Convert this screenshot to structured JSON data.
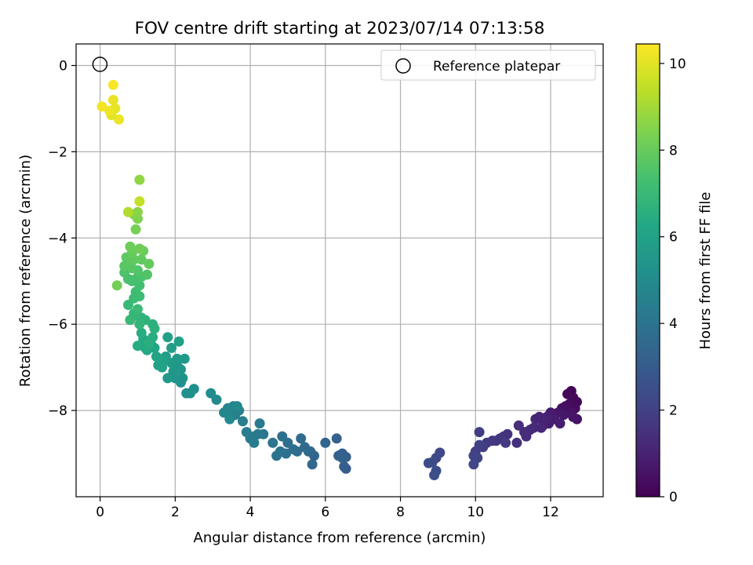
{
  "chart_data": {
    "type": "scatter",
    "title": "FOV centre drift starting at 2023/07/14 07:13:58",
    "xlabel": "Angular distance from reference (arcmin)",
    "ylabel": "Rotation from reference (arcmin)",
    "xlim": [
      -0.64,
      13.4
    ],
    "ylim": [
      -10.0,
      0.5
    ],
    "x_ticks": [
      0,
      2,
      4,
      6,
      8,
      10,
      12
    ],
    "x_tick_labels": [
      "0",
      "2",
      "4",
      "6",
      "8",
      "10",
      "12"
    ],
    "y_ticks": [
      0,
      -2,
      -4,
      -6,
      -8
    ],
    "y_tick_labels": [
      "0",
      "−2",
      "−4",
      "−6",
      "−8"
    ],
    "grid": true,
    "legend": {
      "position": "top-right",
      "entries": [
        "Reference platepar"
      ]
    },
    "reference_point": {
      "x": 0,
      "y": 0,
      "label": "Reference platepar"
    },
    "colorbar": {
      "label": "Hours from first FF file",
      "colormap": "viridis",
      "range": [
        0,
        10.45
      ],
      "ticks": [
        0,
        2,
        4,
        6,
        8,
        10
      ],
      "tick_labels": [
        "0",
        "2",
        "4",
        "6",
        "8",
        "10"
      ]
    },
    "points": [
      [
        12.55,
        -7.55,
        0.1
      ],
      [
        12.45,
        -7.62,
        0.15
      ],
      [
        12.6,
        -7.7,
        0.2
      ],
      [
        12.7,
        -7.8,
        0.25
      ],
      [
        12.5,
        -7.85,
        0.3
      ],
      [
        12.65,
        -7.95,
        0.35
      ],
      [
        12.4,
        -7.9,
        0.4
      ],
      [
        12.3,
        -7.95,
        0.45
      ],
      [
        12.55,
        -8.05,
        0.5
      ],
      [
        12.7,
        -8.2,
        0.55
      ],
      [
        12.6,
        -8.15,
        0.6
      ],
      [
        12.35,
        -8.1,
        0.65
      ],
      [
        12.2,
        -8.05,
        0.7
      ],
      [
        12.0,
        -8.05,
        0.75
      ],
      [
        12.1,
        -8.2,
        0.8
      ],
      [
        12.25,
        -8.3,
        0.85
      ],
      [
        11.95,
        -8.3,
        0.9
      ],
      [
        11.8,
        -8.35,
        0.95
      ],
      [
        11.9,
        -8.15,
        1.0
      ],
      [
        11.7,
        -8.15,
        1.05
      ],
      [
        11.6,
        -8.2,
        1.1
      ],
      [
        11.75,
        -8.4,
        1.15
      ],
      [
        11.55,
        -8.4,
        1.2
      ],
      [
        11.45,
        -8.45,
        1.25
      ],
      [
        11.3,
        -8.5,
        1.3
      ],
      [
        11.35,
        -8.6,
        1.35
      ],
      [
        11.15,
        -8.35,
        1.4
      ],
      [
        11.1,
        -8.75,
        1.45
      ],
      [
        10.85,
        -8.55,
        1.5
      ],
      [
        10.75,
        -8.6,
        1.55
      ],
      [
        10.65,
        -8.65,
        1.6
      ],
      [
        10.55,
        -8.7,
        1.65
      ],
      [
        10.45,
        -8.7,
        1.7
      ],
      [
        10.8,
        -8.75,
        1.75
      ],
      [
        10.3,
        -8.75,
        1.8
      ],
      [
        10.2,
        -8.85,
        1.85
      ],
      [
        10.1,
        -8.5,
        1.9
      ],
      [
        10.1,
        -8.8,
        1.95
      ],
      [
        10.0,
        -8.95,
        2.0
      ],
      [
        9.95,
        -9.05,
        2.05
      ],
      [
        10.05,
        -9.1,
        2.1
      ],
      [
        9.95,
        -9.25,
        2.15
      ],
      [
        9.05,
        -8.98,
        2.25
      ],
      [
        8.95,
        -9.1,
        2.3
      ],
      [
        8.85,
        -9.2,
        2.35
      ],
      [
        8.75,
        -9.22,
        2.4
      ],
      [
        8.95,
        -9.4,
        2.45
      ],
      [
        8.9,
        -9.5,
        2.5
      ],
      [
        6.55,
        -9.35,
        3.0
      ],
      [
        6.5,
        -9.3,
        3.05
      ],
      [
        6.55,
        -9.08,
        3.1
      ],
      [
        6.45,
        -9.0,
        3.15
      ],
      [
        6.35,
        -9.05,
        3.2
      ],
      [
        6.3,
        -8.65,
        3.25
      ],
      [
        6.45,
        -9.1,
        3.3
      ],
      [
        6.0,
        -8.75,
        3.35
      ],
      [
        5.7,
        -9.05,
        3.4
      ],
      [
        5.65,
        -9.25,
        3.45
      ],
      [
        5.6,
        -8.95,
        3.5
      ],
      [
        5.55,
        -8.95,
        3.55
      ],
      [
        5.45,
        -8.85,
        3.6
      ],
      [
        5.35,
        -8.65,
        3.65
      ],
      [
        5.25,
        -8.95,
        3.7
      ],
      [
        5.0,
        -8.75,
        3.75
      ],
      [
        5.15,
        -8.9,
        3.8
      ],
      [
        4.95,
        -9.0,
        3.85
      ],
      [
        4.85,
        -8.6,
        3.9
      ],
      [
        4.8,
        -8.95,
        3.95
      ],
      [
        4.7,
        -9.05,
        4.0
      ],
      [
        4.6,
        -8.75,
        4.05
      ],
      [
        4.35,
        -8.55,
        4.1
      ],
      [
        4.2,
        -8.55,
        4.15
      ],
      [
        4.1,
        -8.6,
        4.2
      ],
      [
        4.25,
        -8.3,
        4.25
      ],
      [
        4.0,
        -8.65,
        4.3
      ],
      [
        4.1,
        -8.75,
        4.35
      ],
      [
        3.9,
        -8.5,
        4.4
      ],
      [
        3.8,
        -8.25,
        4.45
      ],
      [
        3.7,
        -8.0,
        4.5
      ],
      [
        3.6,
        -8.1,
        4.55
      ],
      [
        3.55,
        -7.9,
        4.6
      ],
      [
        3.5,
        -8.0,
        4.65
      ],
      [
        3.45,
        -8.15,
        4.7
      ],
      [
        3.4,
        -7.95,
        4.75
      ],
      [
        3.3,
        -8.05,
        4.8
      ],
      [
        3.65,
        -7.9,
        4.85
      ],
      [
        3.45,
        -8.2,
        4.9
      ],
      [
        3.1,
        -7.75,
        4.95
      ],
      [
        2.95,
        -7.6,
        5.0
      ],
      [
        2.5,
        -7.5,
        5.1
      ],
      [
        2.4,
        -7.6,
        5.15
      ],
      [
        2.3,
        -7.6,
        5.2
      ],
      [
        2.15,
        -7.35,
        5.25
      ],
      [
        2.2,
        -7.25,
        5.3
      ],
      [
        2.0,
        -7.25,
        5.35
      ],
      [
        2.15,
        -7.05,
        5.4
      ],
      [
        2.05,
        -6.95,
        5.45
      ],
      [
        1.95,
        -7.1,
        5.5
      ],
      [
        1.8,
        -7.25,
        5.55
      ],
      [
        2.25,
        -6.8,
        5.6
      ],
      [
        2.05,
        -6.8,
        5.65
      ],
      [
        1.9,
        -6.9,
        5.7
      ],
      [
        1.75,
        -6.75,
        5.75
      ],
      [
        1.9,
        -6.55,
        5.8
      ],
      [
        2.1,
        -6.4,
        5.85
      ],
      [
        1.8,
        -6.3,
        5.9
      ],
      [
        1.7,
        -6.85,
        5.95
      ],
      [
        1.55,
        -6.95,
        6.0
      ],
      [
        1.65,
        -7.0,
        6.05
      ],
      [
        1.5,
        -6.75,
        6.1
      ],
      [
        1.45,
        -6.55,
        6.15
      ],
      [
        1.35,
        -6.45,
        6.2
      ],
      [
        1.25,
        -6.6,
        6.25
      ],
      [
        1.15,
        -6.35,
        6.3
      ],
      [
        1.2,
        -6.55,
        6.35
      ],
      [
        1.0,
        -6.5,
        6.4
      ],
      [
        1.1,
        -6.2,
        6.45
      ],
      [
        1.4,
        -6.3,
        6.5
      ],
      [
        1.3,
        -6.45,
        6.55
      ],
      [
        1.45,
        -6.1,
        6.6
      ],
      [
        1.4,
        -6.0,
        6.65
      ],
      [
        1.2,
        -5.9,
        6.7
      ],
      [
        1.1,
        -5.85,
        6.75
      ],
      [
        0.95,
        -5.8,
        6.8
      ],
      [
        1.05,
        -6.0,
        6.85
      ],
      [
        0.9,
        -5.75,
        6.9
      ],
      [
        0.8,
        -5.9,
        6.95
      ],
      [
        0.75,
        -5.55,
        7.0
      ],
      [
        1.0,
        -5.65,
        7.05
      ],
      [
        0.9,
        -5.4,
        7.1
      ],
      [
        1.05,
        -5.35,
        7.15
      ],
      [
        0.95,
        -5.25,
        7.2
      ],
      [
        1.05,
        -5.1,
        7.25
      ],
      [
        0.85,
        -5.0,
        7.3
      ],
      [
        0.95,
        -4.95,
        7.35
      ],
      [
        0.75,
        -4.95,
        7.4
      ],
      [
        1.1,
        -4.9,
        7.45
      ],
      [
        0.65,
        -4.8,
        7.5
      ],
      [
        1.25,
        -4.85,
        7.55
      ],
      [
        1.0,
        -4.75,
        7.6
      ],
      [
        0.85,
        -4.7,
        7.65
      ],
      [
        0.65,
        -4.65,
        7.7
      ],
      [
        0.75,
        -4.55,
        7.75
      ],
      [
        0.7,
        -4.45,
        7.8
      ],
      [
        0.9,
        -4.5,
        7.85
      ],
      [
        1.1,
        -4.5,
        7.9
      ],
      [
        1.3,
        -4.6,
        7.95
      ],
      [
        0.85,
        -4.35,
        8.0
      ],
      [
        1.15,
        -4.3,
        8.05
      ],
      [
        0.8,
        -4.2,
        8.1
      ],
      [
        1.05,
        -4.25,
        8.15
      ],
      [
        0.45,
        -5.1,
        8.2
      ],
      [
        0.95,
        -3.8,
        8.3
      ],
      [
        1.0,
        -3.55,
        8.4
      ],
      [
        0.9,
        -3.45,
        8.5
      ],
      [
        1.0,
        -3.4,
        8.6
      ],
      [
        1.05,
        -2.65,
        8.7
      ],
      [
        0.75,
        -3.4,
        9.2
      ],
      [
        1.05,
        -3.15,
        9.5
      ],
      [
        0.3,
        -1.15,
        10.0
      ],
      [
        0.4,
        -1.0,
        10.05
      ],
      [
        0.35,
        -0.8,
        10.1
      ],
      [
        0.5,
        -1.25,
        10.15
      ],
      [
        0.25,
        -1.05,
        10.2
      ],
      [
        0.05,
        -0.95,
        10.25
      ],
      [
        0.35,
        -0.45,
        10.35
      ]
    ]
  }
}
